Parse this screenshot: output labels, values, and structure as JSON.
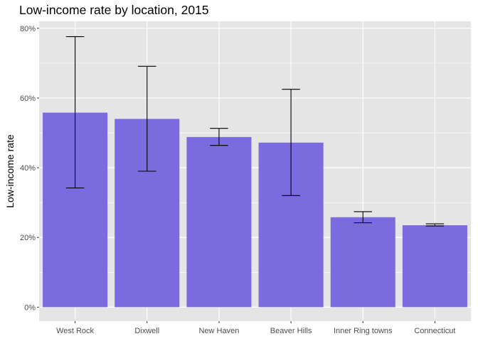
{
  "chart_data": {
    "type": "bar",
    "title": "Low-income rate by location, 2015",
    "xlabel": "",
    "ylabel": "Low-income rate",
    "categories": [
      "West Rock",
      "Dixwell",
      "New Haven",
      "Beaver Hills",
      "Inner Ring towns",
      "Connecticut"
    ],
    "values": [
      0.558,
      0.54,
      0.488,
      0.472,
      0.258,
      0.235
    ],
    "error_low": [
      0.342,
      0.39,
      0.464,
      0.32,
      0.242,
      0.233
    ],
    "error_high": [
      0.776,
      0.691,
      0.513,
      0.625,
      0.274,
      0.239
    ],
    "ylim": [
      -0.04,
      0.82
    ],
    "yticks": [
      0,
      0.2,
      0.4,
      0.6,
      0.8
    ],
    "ytick_labels": [
      "0%",
      "20%",
      "40%",
      "60%",
      "80%"
    ],
    "grid": true,
    "legend": "none",
    "colors": {
      "bar": "#7B6BDE",
      "panel": "#E5E5E5",
      "grid": "#FFFFFF",
      "errorbar": "#000000"
    }
  }
}
